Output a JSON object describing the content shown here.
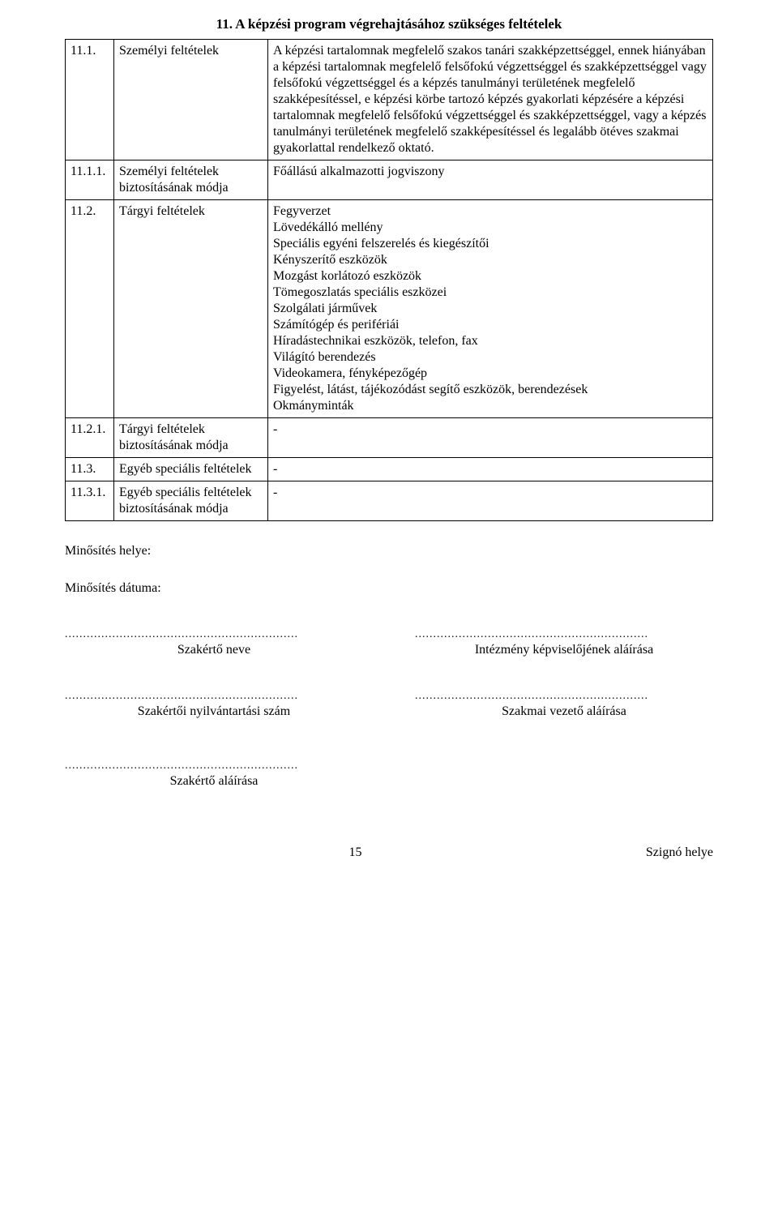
{
  "title": "11. A képzési program végrehajtásához szükséges feltételek",
  "rows": [
    {
      "num": "11.1.",
      "label": "Személyi feltételek",
      "content": "A képzési tartalomnak megfelelő szakos tanári szakképzettséggel, ennek hiányában a képzési tartalomnak megfelelő felsőfokú végzettséggel és szakképzettséggel vagy felsőfokú végzettséggel és a képzés tanulmányi területének megfelelő szakképesítéssel, e képzési körbe tartozó képzés gyakorlati képzésére a képzési tartalomnak megfelelő felsőfokú végzettséggel és szakképzettséggel, vagy a képzés tanulmányi területének megfelelő szakképesítéssel és legalább ötéves szakmai gyakorlattal rendelkező oktató."
    },
    {
      "num": "11.1.1.",
      "label": "Személyi feltételek biztosításának módja",
      "content": "Főállású alkalmazotti jogviszony"
    },
    {
      "num": "11.2.",
      "label": "Tárgyi feltételek",
      "content_list": [
        "Fegyverzet",
        "Lövedékálló mellény",
        "Speciális egyéni felszerelés és kiegészítői",
        "Kényszerítő eszközök",
        "Mozgást korlátozó eszközök",
        "Tömegoszlatás speciális eszközei",
        "Szolgálati járművek",
        "Számítógép és perifériái",
        "Híradástechnikai eszközök, telefon, fax",
        "Világító berendezés",
        "Videokamera, fényképezőgép",
        "Figyelést, látást, tájékozódást segítő eszközök, berendezések",
        "Okmányminták"
      ]
    },
    {
      "num": "11.2.1.",
      "label": "Tárgyi feltételek biztosításának módja",
      "content": "-"
    },
    {
      "num": "11.3.",
      "label": "Egyéb speciális feltételek",
      "content": "-"
    },
    {
      "num": "11.3.1.",
      "label": "Egyéb speciális feltételek biztosításának módja",
      "content": "-"
    }
  ],
  "fields": {
    "minosites_helye": "Minősítés helye:",
    "minosites_datuma": "Minősítés dátuma:"
  },
  "signatures": {
    "dots": "................................................................",
    "szakerto_neve": "Szakértő neve",
    "intezmeny": "Intézmény képviselőjének aláírása",
    "nyilvantartasi": "Szakértői nyilvántartási szám",
    "szakmai_vezeto": "Szakmai vezető aláírása",
    "szakerto_alairasa": "Szakértő aláírása"
  },
  "footer": {
    "page": "15",
    "right": "Szignó helye"
  }
}
